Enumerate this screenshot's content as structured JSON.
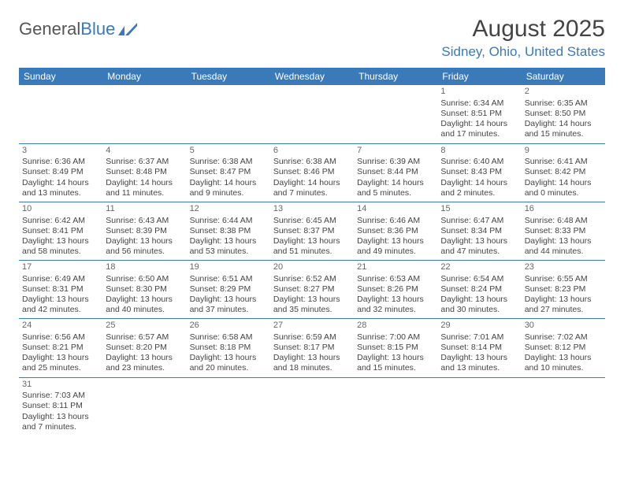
{
  "logo": {
    "part1": "General",
    "part2": "Blue"
  },
  "title": "August 2025",
  "location": "Sidney, Ohio, United States",
  "daynames": [
    "Sunday",
    "Monday",
    "Tuesday",
    "Wednesday",
    "Thursday",
    "Friday",
    "Saturday"
  ],
  "colors": {
    "header_bg": "#3a7ab8",
    "header_fg": "#ffffff",
    "border": "#3a7ab8",
    "text": "#444444"
  },
  "weeks": [
    [
      null,
      null,
      null,
      null,
      null,
      {
        "d": "1",
        "sr": "Sunrise: 6:34 AM",
        "ss": "Sunset: 8:51 PM",
        "dl1": "Daylight: 14 hours",
        "dl2": "and 17 minutes."
      },
      {
        "d": "2",
        "sr": "Sunrise: 6:35 AM",
        "ss": "Sunset: 8:50 PM",
        "dl1": "Daylight: 14 hours",
        "dl2": "and 15 minutes."
      }
    ],
    [
      {
        "d": "3",
        "sr": "Sunrise: 6:36 AM",
        "ss": "Sunset: 8:49 PM",
        "dl1": "Daylight: 14 hours",
        "dl2": "and 13 minutes."
      },
      {
        "d": "4",
        "sr": "Sunrise: 6:37 AM",
        "ss": "Sunset: 8:48 PM",
        "dl1": "Daylight: 14 hours",
        "dl2": "and 11 minutes."
      },
      {
        "d": "5",
        "sr": "Sunrise: 6:38 AM",
        "ss": "Sunset: 8:47 PM",
        "dl1": "Daylight: 14 hours",
        "dl2": "and 9 minutes."
      },
      {
        "d": "6",
        "sr": "Sunrise: 6:38 AM",
        "ss": "Sunset: 8:46 PM",
        "dl1": "Daylight: 14 hours",
        "dl2": "and 7 minutes."
      },
      {
        "d": "7",
        "sr": "Sunrise: 6:39 AM",
        "ss": "Sunset: 8:44 PM",
        "dl1": "Daylight: 14 hours",
        "dl2": "and 5 minutes."
      },
      {
        "d": "8",
        "sr": "Sunrise: 6:40 AM",
        "ss": "Sunset: 8:43 PM",
        "dl1": "Daylight: 14 hours",
        "dl2": "and 2 minutes."
      },
      {
        "d": "9",
        "sr": "Sunrise: 6:41 AM",
        "ss": "Sunset: 8:42 PM",
        "dl1": "Daylight: 14 hours",
        "dl2": "and 0 minutes."
      }
    ],
    [
      {
        "d": "10",
        "sr": "Sunrise: 6:42 AM",
        "ss": "Sunset: 8:41 PM",
        "dl1": "Daylight: 13 hours",
        "dl2": "and 58 minutes."
      },
      {
        "d": "11",
        "sr": "Sunrise: 6:43 AM",
        "ss": "Sunset: 8:39 PM",
        "dl1": "Daylight: 13 hours",
        "dl2": "and 56 minutes."
      },
      {
        "d": "12",
        "sr": "Sunrise: 6:44 AM",
        "ss": "Sunset: 8:38 PM",
        "dl1": "Daylight: 13 hours",
        "dl2": "and 53 minutes."
      },
      {
        "d": "13",
        "sr": "Sunrise: 6:45 AM",
        "ss": "Sunset: 8:37 PM",
        "dl1": "Daylight: 13 hours",
        "dl2": "and 51 minutes."
      },
      {
        "d": "14",
        "sr": "Sunrise: 6:46 AM",
        "ss": "Sunset: 8:36 PM",
        "dl1": "Daylight: 13 hours",
        "dl2": "and 49 minutes."
      },
      {
        "d": "15",
        "sr": "Sunrise: 6:47 AM",
        "ss": "Sunset: 8:34 PM",
        "dl1": "Daylight: 13 hours",
        "dl2": "and 47 minutes."
      },
      {
        "d": "16",
        "sr": "Sunrise: 6:48 AM",
        "ss": "Sunset: 8:33 PM",
        "dl1": "Daylight: 13 hours",
        "dl2": "and 44 minutes."
      }
    ],
    [
      {
        "d": "17",
        "sr": "Sunrise: 6:49 AM",
        "ss": "Sunset: 8:31 PM",
        "dl1": "Daylight: 13 hours",
        "dl2": "and 42 minutes."
      },
      {
        "d": "18",
        "sr": "Sunrise: 6:50 AM",
        "ss": "Sunset: 8:30 PM",
        "dl1": "Daylight: 13 hours",
        "dl2": "and 40 minutes."
      },
      {
        "d": "19",
        "sr": "Sunrise: 6:51 AM",
        "ss": "Sunset: 8:29 PM",
        "dl1": "Daylight: 13 hours",
        "dl2": "and 37 minutes."
      },
      {
        "d": "20",
        "sr": "Sunrise: 6:52 AM",
        "ss": "Sunset: 8:27 PM",
        "dl1": "Daylight: 13 hours",
        "dl2": "and 35 minutes."
      },
      {
        "d": "21",
        "sr": "Sunrise: 6:53 AM",
        "ss": "Sunset: 8:26 PM",
        "dl1": "Daylight: 13 hours",
        "dl2": "and 32 minutes."
      },
      {
        "d": "22",
        "sr": "Sunrise: 6:54 AM",
        "ss": "Sunset: 8:24 PM",
        "dl1": "Daylight: 13 hours",
        "dl2": "and 30 minutes."
      },
      {
        "d": "23",
        "sr": "Sunrise: 6:55 AM",
        "ss": "Sunset: 8:23 PM",
        "dl1": "Daylight: 13 hours",
        "dl2": "and 27 minutes."
      }
    ],
    [
      {
        "d": "24",
        "sr": "Sunrise: 6:56 AM",
        "ss": "Sunset: 8:21 PM",
        "dl1": "Daylight: 13 hours",
        "dl2": "and 25 minutes."
      },
      {
        "d": "25",
        "sr": "Sunrise: 6:57 AM",
        "ss": "Sunset: 8:20 PM",
        "dl1": "Daylight: 13 hours",
        "dl2": "and 23 minutes."
      },
      {
        "d": "26",
        "sr": "Sunrise: 6:58 AM",
        "ss": "Sunset: 8:18 PM",
        "dl1": "Daylight: 13 hours",
        "dl2": "and 20 minutes."
      },
      {
        "d": "27",
        "sr": "Sunrise: 6:59 AM",
        "ss": "Sunset: 8:17 PM",
        "dl1": "Daylight: 13 hours",
        "dl2": "and 18 minutes."
      },
      {
        "d": "28",
        "sr": "Sunrise: 7:00 AM",
        "ss": "Sunset: 8:15 PM",
        "dl1": "Daylight: 13 hours",
        "dl2": "and 15 minutes."
      },
      {
        "d": "29",
        "sr": "Sunrise: 7:01 AM",
        "ss": "Sunset: 8:14 PM",
        "dl1": "Daylight: 13 hours",
        "dl2": "and 13 minutes."
      },
      {
        "d": "30",
        "sr": "Sunrise: 7:02 AM",
        "ss": "Sunset: 8:12 PM",
        "dl1": "Daylight: 13 hours",
        "dl2": "and 10 minutes."
      }
    ],
    [
      {
        "d": "31",
        "sr": "Sunrise: 7:03 AM",
        "ss": "Sunset: 8:11 PM",
        "dl1": "Daylight: 13 hours",
        "dl2": "and 7 minutes."
      },
      null,
      null,
      null,
      null,
      null,
      null
    ]
  ]
}
